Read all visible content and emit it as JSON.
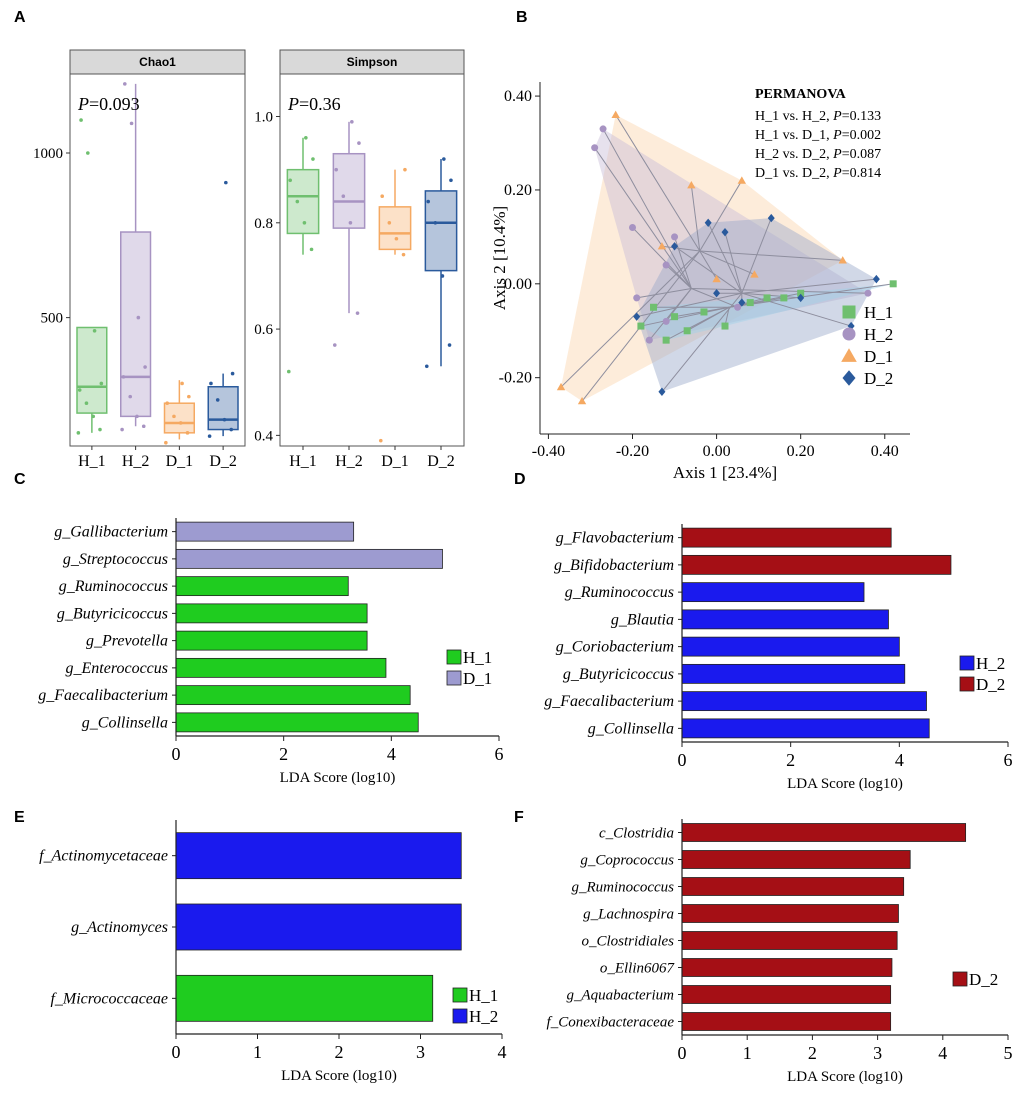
{
  "panels": {
    "a": "A",
    "b": "B",
    "c": "C",
    "d": "D",
    "e": "E",
    "f": "F"
  },
  "colors": {
    "H_1": "#6fbf6f",
    "H_2": "#a793c2",
    "D_1": "#f5a962",
    "D_2": "#2a5a9c",
    "lda_green": "#1fcc1f",
    "lda_purple": "#9d9bd0",
    "lda_blue": "#1a1aee",
    "lda_red": "#a50f15",
    "strip_bg": "#d9d9d9"
  },
  "chart_data": [
    {
      "id": "chao1",
      "type": "box",
      "title": "Chao1",
      "annotation_p": "P",
      "annotation_val": "=0.093",
      "categories": [
        "H_1",
        "H_2",
        "D_1",
        "D_2"
      ],
      "ylim": [
        110,
        1240
      ],
      "yticks": [
        500,
        1000
      ],
      "ytick_labels": [
        "500",
        "1000"
      ],
      "boxes": [
        {
          "group": "H_1",
          "min": 150,
          "q1": 210,
          "median": 290,
          "q3": 470,
          "max": 470,
          "points": [
            150,
            160,
            200,
            240,
            280,
            300,
            460,
            1000,
            1100
          ]
        },
        {
          "group": "H_2",
          "min": 170,
          "q1": 200,
          "median": 320,
          "q3": 760,
          "max": 1210,
          "points": [
            160,
            170,
            200,
            260,
            320,
            350,
            500,
            1090,
            1210
          ]
        },
        {
          "group": "D_1",
          "min": 130,
          "q1": 150,
          "median": 180,
          "q3": 240,
          "max": 310,
          "points": [
            120,
            150,
            180,
            200,
            240,
            260,
            300
          ]
        },
        {
          "group": "D_2",
          "min": 140,
          "q1": 160,
          "median": 190,
          "q3": 290,
          "max": 330,
          "points": [
            140,
            160,
            190,
            250,
            300,
            330,
            910
          ]
        }
      ]
    },
    {
      "id": "simpson",
      "type": "box",
      "title": "Simpson",
      "annotation_p": "P",
      "annotation_val": "=0.36",
      "categories": [
        "H_1",
        "H_2",
        "D_1",
        "D_2"
      ],
      "ylim": [
        0.38,
        1.08
      ],
      "yticks": [
        0.4,
        0.6,
        0.8,
        1.0
      ],
      "ytick_labels": [
        "0.4",
        "0.6",
        "0.8",
        "1.0"
      ],
      "boxes": [
        {
          "group": "H_1",
          "min": 0.74,
          "q1": 0.78,
          "median": 0.85,
          "q3": 0.9,
          "max": 0.96,
          "points": [
            0.52,
            0.75,
            0.8,
            0.84,
            0.88,
            0.92,
            0.96
          ]
        },
        {
          "group": "H_2",
          "min": 0.63,
          "q1": 0.79,
          "median": 0.84,
          "q3": 0.93,
          "max": 0.99,
          "points": [
            0.57,
            0.63,
            0.8,
            0.85,
            0.9,
            0.95,
            0.99
          ]
        },
        {
          "group": "D_1",
          "min": 0.74,
          "q1": 0.75,
          "median": 0.78,
          "q3": 0.83,
          "max": 0.9,
          "points": [
            0.39,
            0.74,
            0.77,
            0.8,
            0.85,
            0.9
          ]
        },
        {
          "group": "D_2",
          "min": 0.53,
          "q1": 0.71,
          "median": 0.8,
          "q3": 0.86,
          "max": 0.92,
          "points": [
            0.53,
            0.57,
            0.7,
            0.8,
            0.84,
            0.88,
            0.92
          ]
        }
      ]
    },
    {
      "id": "pcoa",
      "type": "scatter",
      "xlabel": "Axis 1 [23.4%]",
      "ylabel": "Axis 2 [10.4%]",
      "xlim": [
        -0.42,
        0.46
      ],
      "ylim": [
        -0.32,
        0.43
      ],
      "xticks": [
        -0.4,
        -0.2,
        0,
        0.2,
        0.4
      ],
      "xtick_labels": [
        "-0.40",
        "-0.20",
        "0.00",
        "0.20",
        "0.40"
      ],
      "yticks": [
        -0.2,
        0,
        0.2,
        0.4
      ],
      "ytick_labels": [
        "-0.20",
        "0.00",
        "0.20",
        "0.40"
      ],
      "stats_title": "PERMANOVA",
      "stats": [
        {
          "pre": "H_1 vs. H_2, ",
          "p": "P",
          "val": "=0.133"
        },
        {
          "pre": "H_1 vs. D_1, ",
          "p": "P",
          "val": "=0.002"
        },
        {
          "pre": "H_2 vs. D_2, ",
          "p": "P",
          "val": "=0.087"
        },
        {
          "pre": "D_1 vs. D_2, ",
          "p": "P",
          "val": "=0.814"
        }
      ],
      "series": [
        {
          "name": "H_1",
          "marker": "square",
          "centroid": [
            0.03,
            -0.05
          ],
          "points": [
            [
              -0.18,
              -0.09
            ],
            [
              -0.15,
              -0.05
            ],
            [
              -0.12,
              -0.12
            ],
            [
              -0.1,
              -0.07
            ],
            [
              -0.07,
              -0.1
            ],
            [
              -0.03,
              -0.06
            ],
            [
              0.02,
              -0.09
            ],
            [
              0.08,
              -0.04
            ],
            [
              0.12,
              -0.03
            ],
            [
              0.16,
              -0.03
            ],
            [
              0.2,
              -0.02
            ],
            [
              0.42,
              0.0
            ]
          ]
        },
        {
          "name": "H_2",
          "marker": "circle",
          "centroid": [
            -0.06,
            -0.01
          ],
          "points": [
            [
              -0.29,
              0.29
            ],
            [
              -0.27,
              0.33
            ],
            [
              -0.2,
              0.12
            ],
            [
              -0.19,
              -0.03
            ],
            [
              -0.16,
              -0.12
            ],
            [
              -0.12,
              -0.08
            ],
            [
              -0.12,
              0.04
            ],
            [
              -0.1,
              0.1
            ],
            [
              0.05,
              -0.05
            ],
            [
              0.36,
              -0.02
            ]
          ]
        },
        {
          "name": "D_1",
          "marker": "triangle",
          "centroid": [
            -0.04,
            0.07
          ],
          "points": [
            [
              -0.37,
              -0.22
            ],
            [
              -0.32,
              -0.25
            ],
            [
              -0.24,
              0.36
            ],
            [
              -0.13,
              0.08
            ],
            [
              -0.06,
              0.21
            ],
            [
              0.0,
              0.01
            ],
            [
              0.06,
              0.22
            ],
            [
              0.09,
              0.02
            ],
            [
              0.3,
              0.05
            ]
          ]
        },
        {
          "name": "D_2",
          "marker": "diamond",
          "centroid": [
            0.06,
            -0.02
          ],
          "points": [
            [
              -0.19,
              -0.07
            ],
            [
              -0.13,
              -0.23
            ],
            [
              -0.1,
              0.08
            ],
            [
              -0.02,
              0.13
            ],
            [
              0.0,
              -0.02
            ],
            [
              0.02,
              0.11
            ],
            [
              0.06,
              -0.04
            ],
            [
              0.13,
              0.14
            ],
            [
              0.2,
              -0.03
            ],
            [
              0.32,
              -0.09
            ],
            [
              0.38,
              0.01
            ]
          ]
        }
      ],
      "legend": [
        "H_1",
        "H_2",
        "D_1",
        "D_2"
      ]
    },
    {
      "id": "lda_c",
      "type": "bar",
      "orientation": "horizontal",
      "categories": [
        "g_Gallibacterium",
        "g_Streptococcus",
        "g_Ruminococcus",
        "g_Butyricicoccus",
        "g_Prevotella",
        "g_Enterococcus",
        "g_Faecalibacterium",
        "g_Collinsella"
      ],
      "values": [
        3.3,
        4.95,
        3.2,
        3.55,
        3.55,
        3.9,
        4.35,
        4.5
      ],
      "groups": [
        "D_1",
        "D_1",
        "H_1",
        "H_1",
        "H_1",
        "H_1",
        "H_1",
        "H_1"
      ],
      "xlabel": "LDA Score (log10)",
      "xlim": [
        0,
        6
      ],
      "xticks": [
        0,
        2,
        4,
        6
      ],
      "xtick_labels": [
        "0",
        "2",
        "4",
        "6"
      ],
      "legend": [
        "H_1",
        "D_1"
      ]
    },
    {
      "id": "lda_d",
      "type": "bar",
      "orientation": "horizontal",
      "categories": [
        "g_Flavobacterium",
        "g_Bifidobacterium",
        "g_Ruminococcus",
        "g_Blautia",
        "g_Coriobacterium",
        "g_Butyricicoccus",
        "g_Faecalibacterium",
        "g_Collinsella"
      ],
      "values": [
        3.85,
        4.95,
        3.35,
        3.8,
        4.0,
        4.1,
        4.5,
        4.55
      ],
      "groups": [
        "D_2",
        "D_2",
        "H_2",
        "H_2",
        "H_2",
        "H_2",
        "H_2",
        "H_2"
      ],
      "xlabel": "LDA Score (log10)",
      "xlim": [
        0,
        6
      ],
      "xticks": [
        0,
        2,
        4,
        6
      ],
      "xtick_labels": [
        "0",
        "2",
        "4",
        "6"
      ],
      "legend": [
        "H_2",
        "D_2"
      ]
    },
    {
      "id": "lda_e",
      "type": "bar",
      "orientation": "horizontal",
      "categories": [
        "f_Actinomycetaceae",
        "g_Actinomyces",
        "f_Micrococcaceae"
      ],
      "values": [
        3.5,
        3.5,
        3.15
      ],
      "groups": [
        "H_2",
        "H_2",
        "H_1"
      ],
      "xlabel": "LDA Score (log10)",
      "xlim": [
        0,
        4
      ],
      "xticks": [
        0,
        1,
        2,
        3,
        4
      ],
      "xtick_labels": [
        "0",
        "1",
        "2",
        "3",
        "4"
      ],
      "legend": [
        "H_1",
        "H_2"
      ]
    },
    {
      "id": "lda_f",
      "type": "bar",
      "orientation": "horizontal",
      "categories": [
        "c_Clostridia",
        "g_Coprococcus",
        "g_Ruminococcus",
        "g_Lachnospira",
        "o_Clostridiales",
        "o_Ellin6067",
        "g_Aquabacterium",
        "f_Conexibacteraceae"
      ],
      "values": [
        4.35,
        3.5,
        3.4,
        3.32,
        3.3,
        3.22,
        3.2,
        3.2
      ],
      "groups": [
        "D_2",
        "D_2",
        "D_2",
        "D_2",
        "D_2",
        "D_2",
        "D_2",
        "D_2"
      ],
      "xlabel": "LDA Score (log10)",
      "xlim": [
        0,
        5
      ],
      "xticks": [
        0,
        1,
        2,
        3,
        4,
        5
      ],
      "xtick_labels": [
        "0",
        "1",
        "2",
        "3",
        "4",
        "5"
      ],
      "legend": [
        "D_2"
      ]
    }
  ]
}
